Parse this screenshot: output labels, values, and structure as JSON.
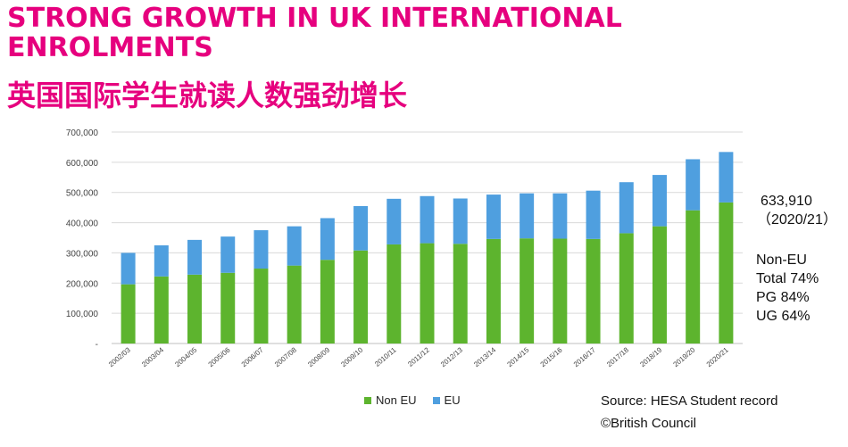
{
  "header": {
    "title_en": "STRONG GROWTH IN UK INTERNATIONAL ENROLMENTS",
    "title_zh": "英国国际学生就读人数强劲增长"
  },
  "annotations": {
    "total_value": "633,910",
    "total_year": "（2020/21）",
    "noneu_heading": "Non-EU",
    "noneu_total": "Total 74%",
    "noneu_pg": "PG 84%",
    "noneu_ug": "UG 64%"
  },
  "footer": {
    "source": "Source: HESA Student record",
    "copyright": "©British Council"
  },
  "colors": {
    "title": "#e6007e",
    "non_eu": "#5db42e",
    "eu": "#4f9fdf"
  },
  "chart_data": {
    "type": "bar",
    "stacked": true,
    "title": "",
    "xlabel": "",
    "ylabel": "",
    "ylim": [
      0,
      700000
    ],
    "y_ticks": [
      0,
      100000,
      200000,
      300000,
      400000,
      500000,
      600000,
      700000
    ],
    "y_tick_labels": [
      "-",
      "100,000",
      "200,000",
      "300,000",
      "400,000",
      "500,000",
      "600,000",
      "700,000"
    ],
    "grid": true,
    "legend": "bottom",
    "categories": [
      "2002/03",
      "2003/04",
      "2004/05",
      "2005/06",
      "2006/07",
      "2007/08",
      "2008/09",
      "2009/10",
      "2010/11",
      "2011/12",
      "2012/13",
      "2013/14",
      "2014/15",
      "2015/16",
      "2016/17",
      "2017/18",
      "2018/19",
      "2019/20",
      "2020/21"
    ],
    "series": [
      {
        "name": "Non EU",
        "values": [
          196000,
          222000,
          228000,
          234000,
          248000,
          258000,
          277000,
          308000,
          328000,
          332000,
          330000,
          346000,
          348000,
          347000,
          346000,
          365000,
          388000,
          441000,
          467000
        ]
      },
      {
        "name": "EU",
        "values": [
          104000,
          103000,
          115000,
          120000,
          127000,
          130000,
          138000,
          147000,
          151000,
          156000,
          150000,
          147000,
          149000,
          150000,
          160000,
          169000,
          170000,
          169000,
          167000
        ]
      }
    ]
  }
}
